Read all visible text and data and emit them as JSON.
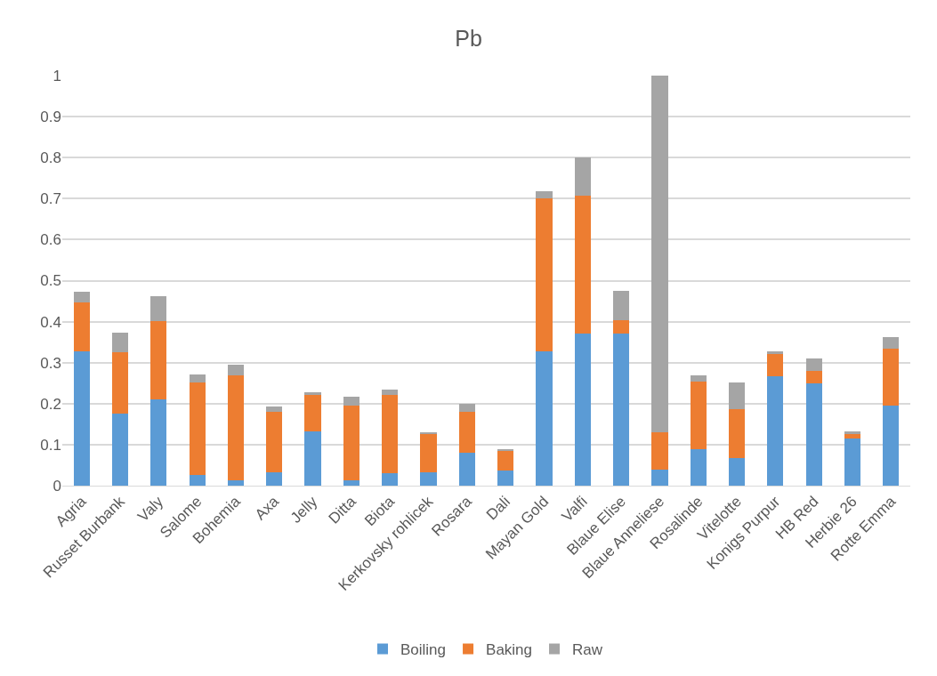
{
  "chart_data": {
    "type": "bar",
    "title": "Pb",
    "stacked": true,
    "grid": "y",
    "legend": "bottom",
    "categories": [
      "Agria",
      "Russet Burbank",
      "Valy",
      "Salome",
      "Bohemia",
      "Axa",
      "Jelly",
      "Ditta",
      "Biota",
      "Kerkovsky rohlicek",
      "Rosara",
      "Dali",
      "Mayan Gold",
      "Valfi",
      "Blaue Elise",
      "Blaue Anneliese",
      "Rosalinde",
      "Vitelotte",
      "Konigs Purpur",
      "HB Red",
      "Herbie 26",
      "Rotte Emma"
    ],
    "series": [
      {
        "name": "Boiling",
        "color": "#5b9bd5",
        "values": [
          0.327,
          0.175,
          0.21,
          0.027,
          0.014,
          0.033,
          0.133,
          0.014,
          0.03,
          0.033,
          0.08,
          0.037,
          0.328,
          0.372,
          0.372,
          0.04,
          0.088,
          0.068,
          0.267,
          0.25,
          0.115,
          0.195
        ]
      },
      {
        "name": "Baking",
        "color": "#ed7d31",
        "values": [
          0.12,
          0.15,
          0.191,
          0.225,
          0.256,
          0.148,
          0.088,
          0.181,
          0.191,
          0.093,
          0.101,
          0.048,
          0.373,
          0.335,
          0.032,
          0.091,
          0.166,
          0.118,
          0.053,
          0.03,
          0.011,
          0.14
        ]
      },
      {
        "name": "Raw",
        "color": "#a5a5a5",
        "values": [
          0.025,
          0.049,
          0.061,
          0.02,
          0.025,
          0.013,
          0.006,
          0.022,
          0.013,
          0.002,
          0.018,
          0.005,
          0.018,
          0.093,
          0.07,
          0.869,
          0.016,
          0.066,
          0.008,
          0.03,
          0.007,
          0.028
        ]
      }
    ],
    "ylim": [
      0,
      1
    ],
    "yticks": [
      0,
      0.1,
      0.2,
      0.3,
      0.4,
      0.5,
      0.6,
      0.7,
      0.8,
      0.9,
      1
    ]
  }
}
